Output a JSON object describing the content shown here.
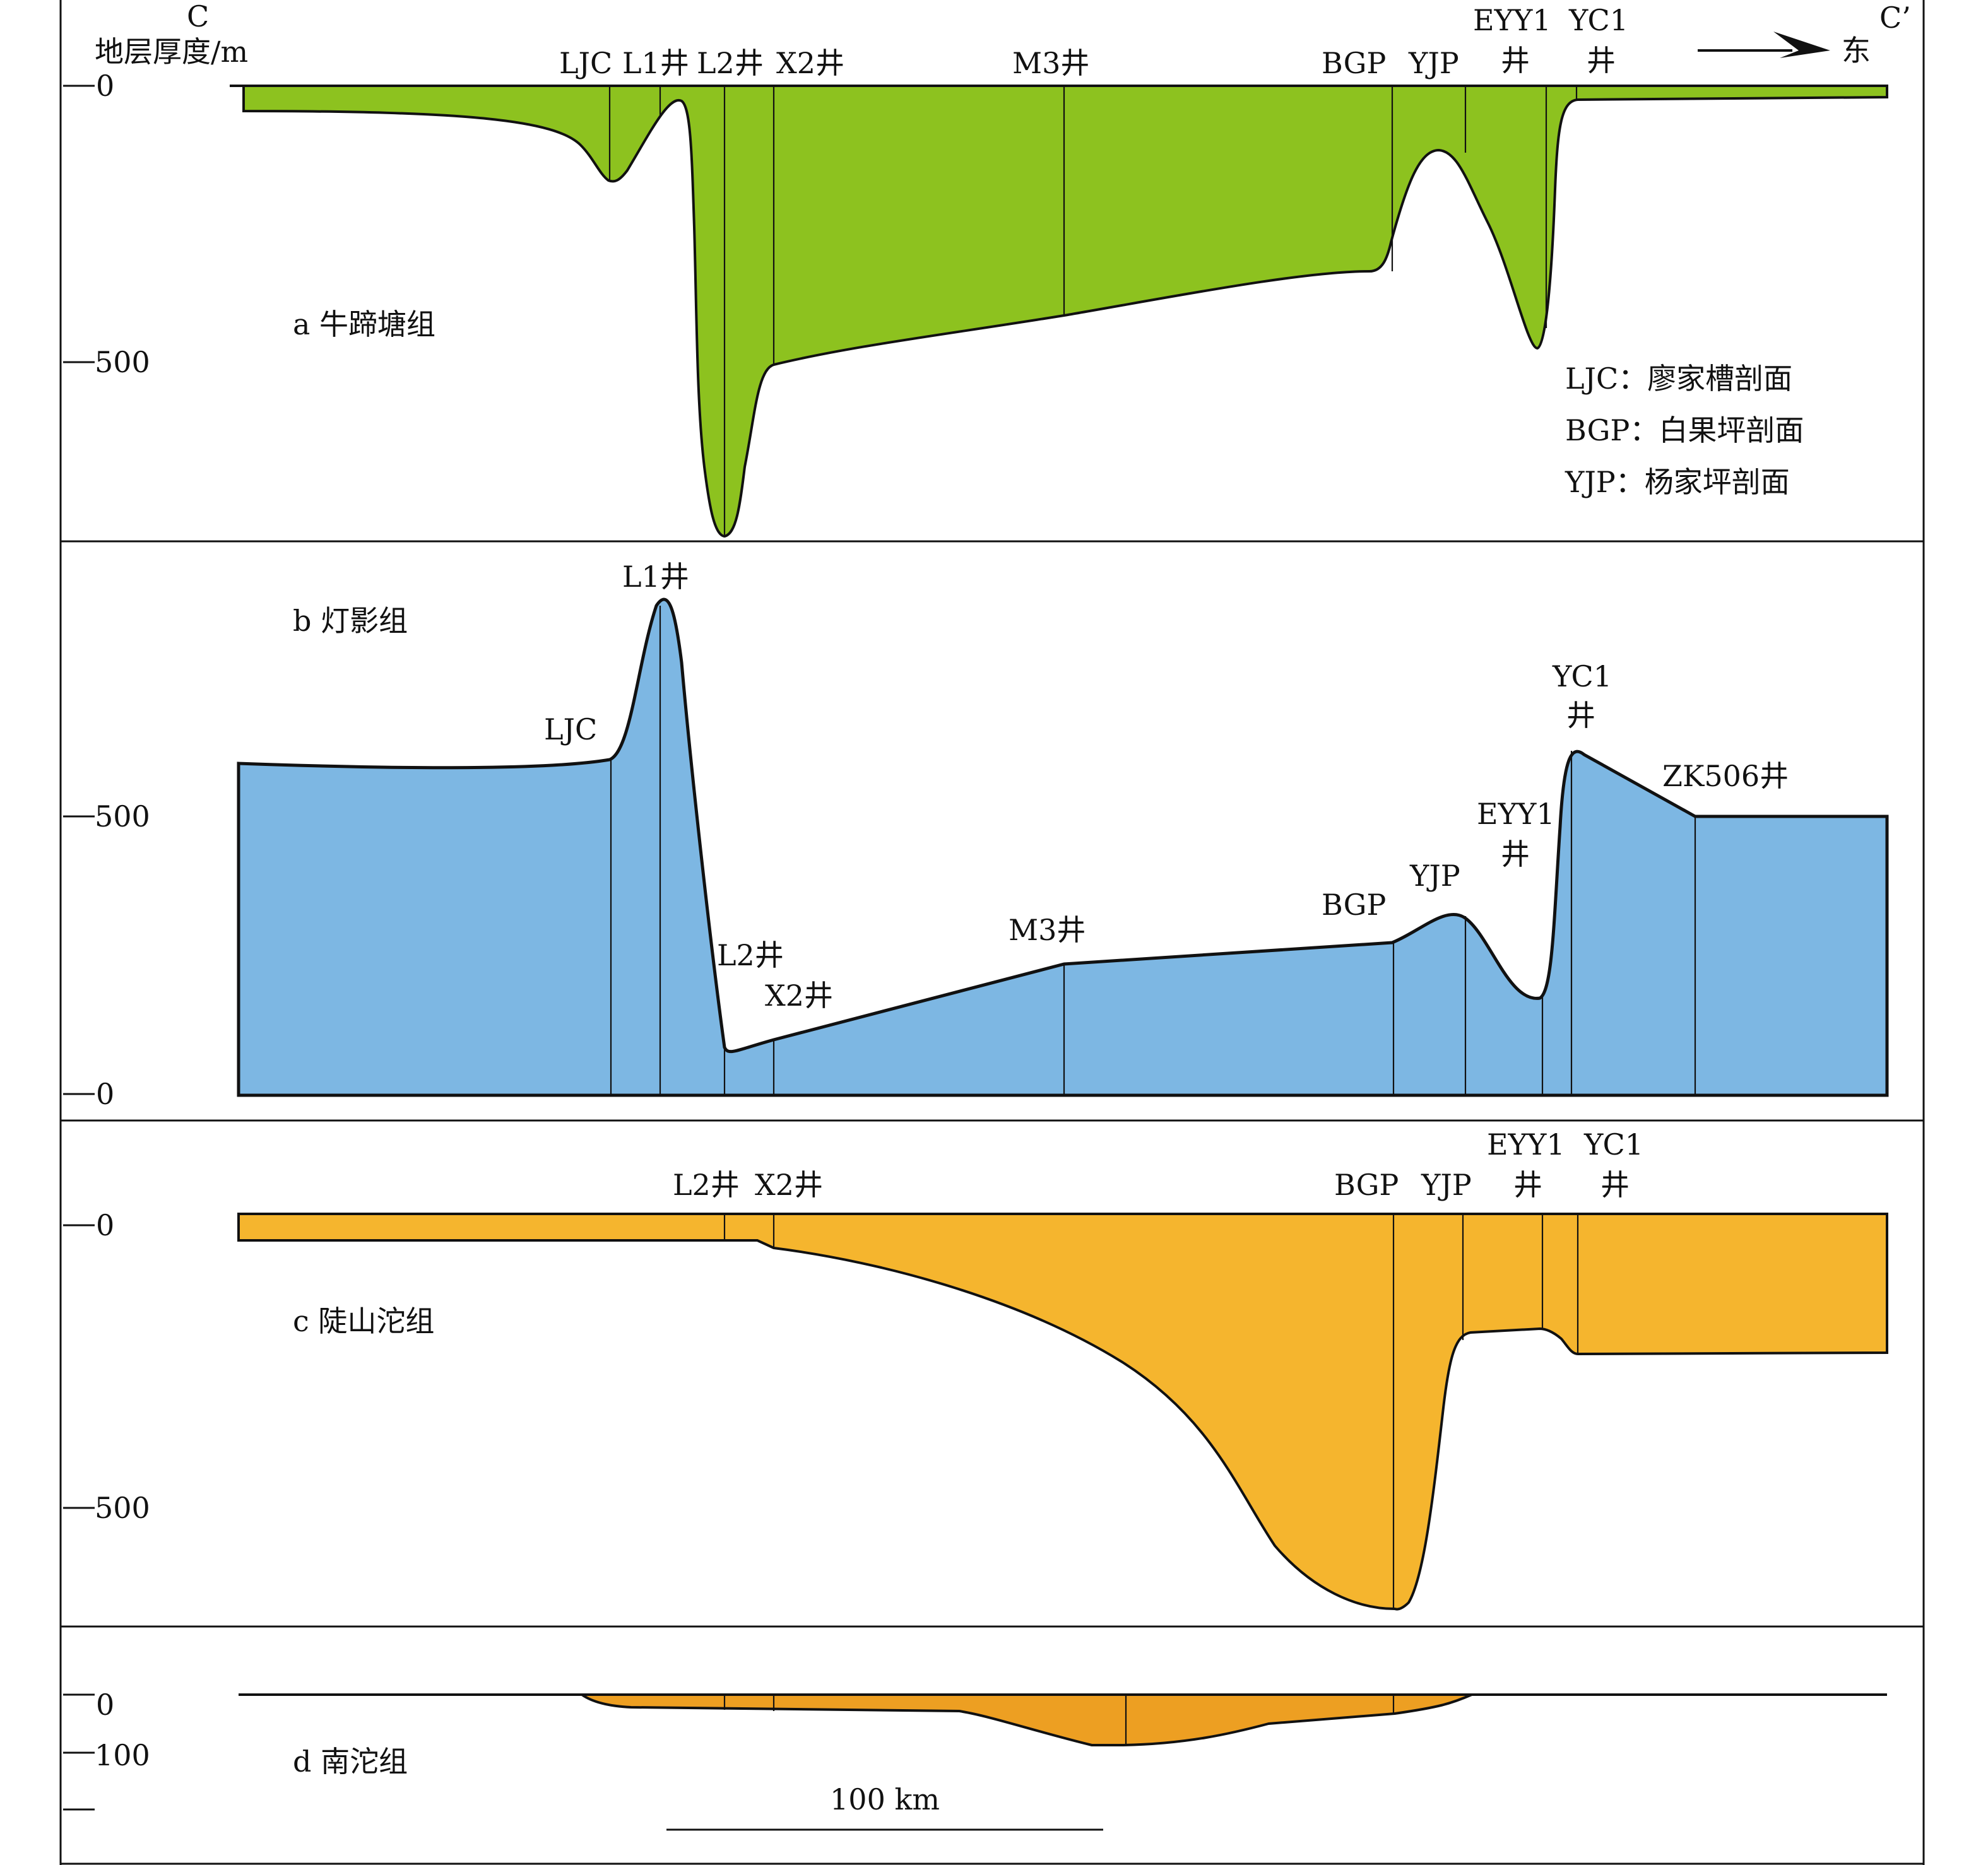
{
  "header": {
    "left_end": "C",
    "right_end": "C’",
    "y_axis_label": "地层厚度/m",
    "direction": "东"
  },
  "panel_a": {
    "title": "a 牛蹄塘组",
    "ticks": [
      "0",
      "500"
    ],
    "wells": [
      "LJC",
      "L1井",
      "L2井",
      "X2井",
      "M3井",
      "BGP",
      "YJP",
      "EYY1",
      "井",
      "YC1",
      "井"
    ],
    "legend": [
      "LJC：廖家槽剖面",
      "BGP：白果坪剖面",
      "YJP：杨家坪剖面"
    ],
    "color": "#8DC21F"
  },
  "panel_b": {
    "title": "b 灯影组",
    "ticks": [
      "500",
      "0"
    ],
    "wells": [
      "L1井",
      "LJC",
      "L2井",
      "X2井",
      "M3井",
      "BGP",
      "YJP",
      "EYY1",
      "井",
      "YC1",
      "井",
      "ZK506井"
    ],
    "color": "#7DB7E3"
  },
  "panel_c": {
    "title": "c 陡山沱组",
    "ticks": [
      "0",
      "500"
    ],
    "wells": [
      "L2井",
      "X2井",
      "BGP",
      "YJP",
      "EYY1",
      "井",
      "YC1",
      "井"
    ],
    "color": "#F5B52E"
  },
  "panel_d": {
    "title": "d 南沱组",
    "ticks": [
      "0",
      "100"
    ],
    "color": "#ED9F22"
  },
  "scale_bar": {
    "label": "100 km"
  }
}
